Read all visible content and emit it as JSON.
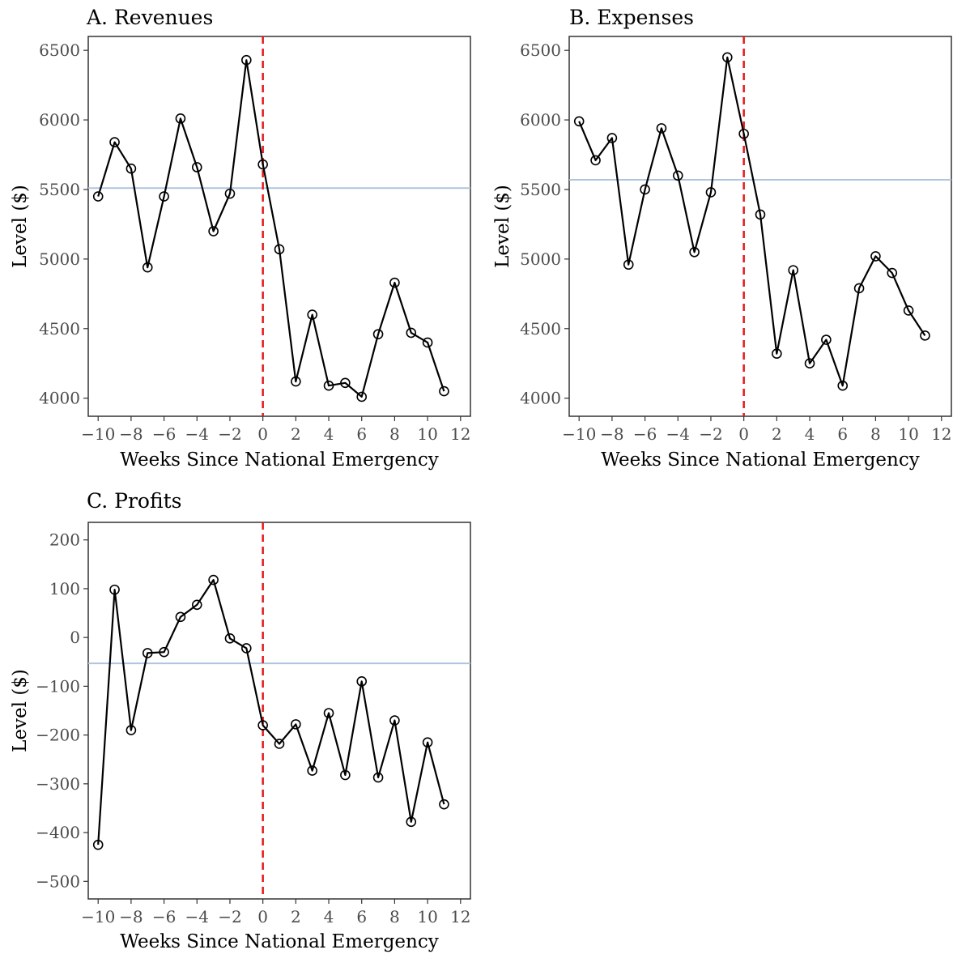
{
  "colors": {
    "line": "#000000",
    "marker_stroke": "#000000",
    "marker_fill": "#ffffff",
    "reference_line": "#b0c4de",
    "event_line": "#e41a1c",
    "tick_text": "#4d4d4d",
    "panel_border": "#333333"
  },
  "chart_data": [
    {
      "type": "line",
      "title": "A. Revenues",
      "xlabel": "Weeks Since National Emergency",
      "ylabel": "Level ($)",
      "xlim": [
        -10.6,
        12.6
      ],
      "ylim": [
        3870,
        6600
      ],
      "xticks": [
        -10,
        -8,
        -6,
        -4,
        -2,
        0,
        2,
        4,
        6,
        8,
        10,
        12
      ],
      "xtick_labels": [
        "−10",
        "−8",
        "−6",
        "−4",
        "−2",
        "0",
        "2",
        "4",
        "6",
        "8",
        "10",
        "12"
      ],
      "yticks": [
        4000,
        4500,
        5000,
        5500,
        6000,
        6500
      ],
      "ytick_labels": [
        "4000",
        "4500",
        "5000",
        "5500",
        "6000",
        "6500"
      ],
      "x": [
        -10,
        -9,
        -8,
        -7,
        -6,
        -5,
        -4,
        -3,
        -2,
        -1,
        0,
        1,
        2,
        3,
        4,
        5,
        6,
        7,
        8,
        9,
        10,
        11
      ],
      "y": [
        5450,
        5840,
        5650,
        4940,
        5450,
        6010,
        5660,
        5200,
        5470,
        6430,
        5680,
        5070,
        4120,
        4600,
        4090,
        4110,
        4010,
        4460,
        4830,
        4470,
        4400,
        4050
      ],
      "reference_hline": 5510,
      "event_vline": 0,
      "grid": false,
      "markers": "open circles"
    },
    {
      "type": "line",
      "title": "B. Expenses",
      "xlabel": "Weeks Since National Emergency",
      "ylabel": "Level ($)",
      "xlim": [
        -10.6,
        12.6
      ],
      "ylim": [
        3870,
        6600
      ],
      "xticks": [
        -10,
        -8,
        -6,
        -4,
        -2,
        0,
        2,
        4,
        6,
        8,
        10,
        12
      ],
      "xtick_labels": [
        "−10",
        "−8",
        "−6",
        "−4",
        "−2",
        "0",
        "2",
        "4",
        "6",
        "8",
        "10",
        "12"
      ],
      "yticks": [
        4000,
        4500,
        5000,
        5500,
        6000,
        6500
      ],
      "ytick_labels": [
        "4000",
        "4500",
        "5000",
        "5500",
        "6000",
        "6500"
      ],
      "x": [
        -10,
        -9,
        -8,
        -7,
        -6,
        -5,
        -4,
        -3,
        -2,
        -1,
        0,
        1,
        2,
        3,
        4,
        5,
        6,
        7,
        8,
        9,
        10,
        11
      ],
      "y": [
        5990,
        5710,
        5870,
        4960,
        5500,
        5940,
        5600,
        5050,
        5480,
        6450,
        5900,
        5320,
        4320,
        4920,
        4250,
        4420,
        4090,
        4790,
        5020,
        4900,
        4630,
        4450
      ],
      "reference_hline": 5570,
      "event_vline": 0,
      "grid": false,
      "markers": "open circles"
    },
    {
      "type": "line",
      "title": "C. Profits",
      "xlabel": "Weeks Since National Emergency",
      "ylabel": "Level ($)",
      "xlim": [
        -10.6,
        12.6
      ],
      "ylim": [
        -536,
        236
      ],
      "xticks": [
        -10,
        -8,
        -6,
        -4,
        -2,
        0,
        2,
        4,
        6,
        8,
        10,
        12
      ],
      "xtick_labels": [
        "−10",
        "−8",
        "−6",
        "−4",
        "−2",
        "0",
        "2",
        "4",
        "6",
        "8",
        "10",
        "12"
      ],
      "yticks": [
        -500,
        -400,
        -300,
        -200,
        -100,
        0,
        100,
        200
      ],
      "ytick_labels": [
        "−500",
        "−400",
        "−300",
        "−200",
        "−100",
        "0",
        "100",
        "200"
      ],
      "x": [
        -10,
        -9,
        -8,
        -7,
        -6,
        -5,
        -4,
        -3,
        -2,
        -1,
        0,
        1,
        2,
        3,
        4,
        5,
        6,
        7,
        8,
        9,
        10,
        11
      ],
      "y": [
        -425,
        98,
        -190,
        -32,
        -30,
        42,
        67,
        118,
        -2,
        -22,
        -180,
        -218,
        -178,
        -273,
        -155,
        -282,
        -90,
        -287,
        -170,
        -378,
        -215,
        -342
      ],
      "reference_hline": -53,
      "event_vline": 0,
      "grid": false,
      "markers": "open circles"
    }
  ]
}
